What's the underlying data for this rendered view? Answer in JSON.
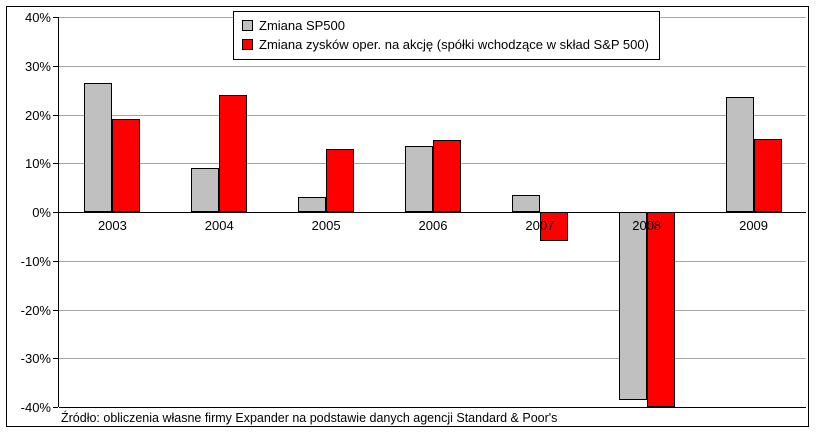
{
  "chart_data": {
    "type": "bar",
    "categories": [
      "2003",
      "2004",
      "2005",
      "2006",
      "2007",
      "2008",
      "2009"
    ],
    "series": [
      {
        "name": "Zmiana SP500",
        "color": "#c0c0c0",
        "values": [
          26.5,
          9,
          3,
          13.5,
          3.5,
          -38.5,
          23.5
        ]
      },
      {
        "name": "Zmiana zysków oper. na akcję (spółki wchodzące w skład S&P 500)",
        "color": "#ff0000",
        "values": [
          19,
          24,
          13,
          14.7,
          -6,
          -40,
          15
        ]
      }
    ],
    "title": "",
    "xlabel": "",
    "ylabel": "",
    "ylim": [
      -40,
      40
    ],
    "ytick_values": [
      40,
      30,
      20,
      10,
      0,
      -10,
      -20,
      -30,
      -40
    ],
    "ytick_labels": [
      "40%",
      "30%",
      "20%",
      "10%",
      "0%",
      "-10%",
      "-20%",
      "-30%",
      "-40%"
    ],
    "grid": true,
    "legend_position": "top-center"
  },
  "footer": {
    "source": "Źródło: obliczenia własne firmy Expander na podstawie danych agencji Standard & Poor's"
  }
}
